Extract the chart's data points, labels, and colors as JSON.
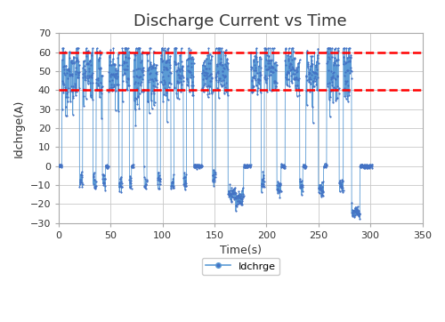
{
  "title": "Discharge Current vs Time",
  "xlabel": "Time(s)",
  "ylabel": "Idchrge(A)",
  "xlim": [
    0,
    350
  ],
  "ylim": [
    -30,
    70
  ],
  "yticks": [
    -30,
    -20,
    -10,
    0,
    10,
    20,
    30,
    40,
    50,
    60,
    70
  ],
  "xticks": [
    0,
    50,
    100,
    150,
    200,
    250,
    300,
    350
  ],
  "hline1": 60,
  "hline2": 40,
  "hline_color": "#FF0000",
  "line_color": "#5B9BD5",
  "marker_color": "#4472C4",
  "background_color": "#FFFFFF",
  "grid_color": "#C8C8C8",
  "legend_label": "Idchrge",
  "title_fontsize": 13,
  "label_fontsize": 9,
  "tick_fontsize": 8
}
